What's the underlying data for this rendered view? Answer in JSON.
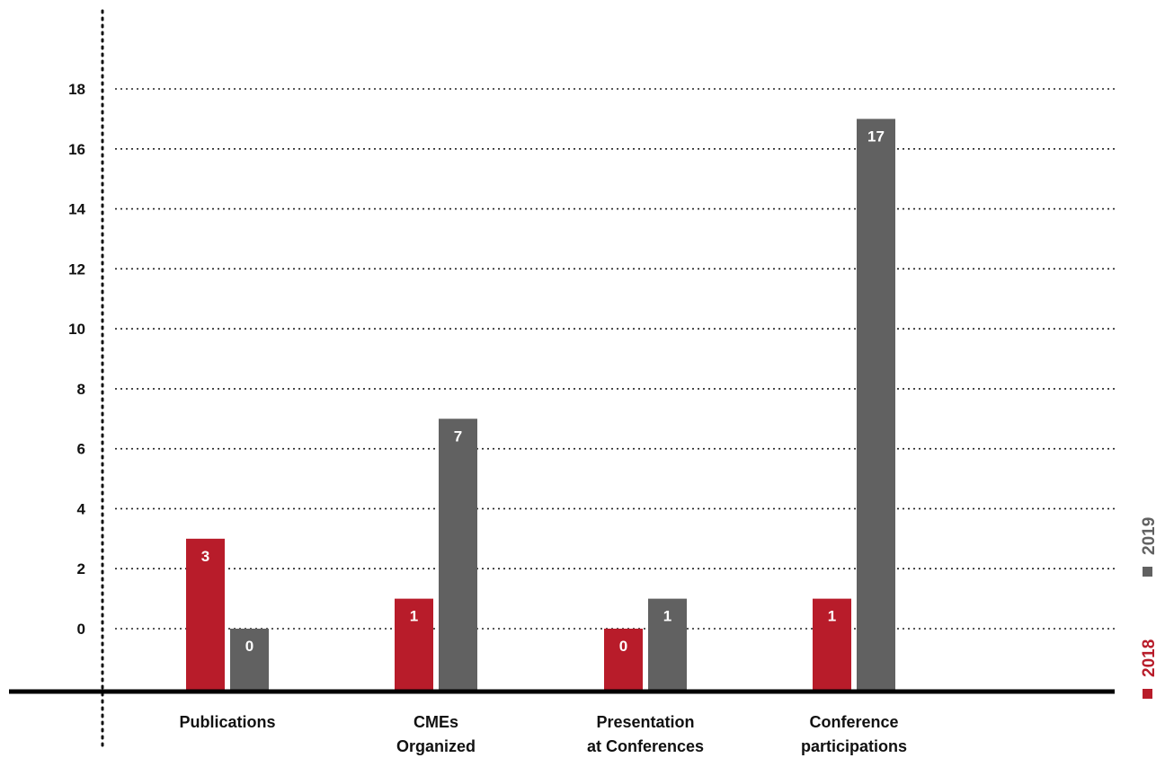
{
  "chart_data": {
    "type": "bar",
    "categories": [
      [
        "Publications"
      ],
      [
        "CMEs",
        "Organized"
      ],
      [
        "Presentation",
        "at Conferences"
      ],
      [
        "Conference",
        "participations"
      ]
    ],
    "series": [
      {
        "name": "2018",
        "color": "#b81c2a",
        "values": [
          3,
          1,
          0,
          1
        ]
      },
      {
        "name": "2019",
        "color": "#616161",
        "values": [
          0,
          7,
          1,
          17
        ]
      }
    ],
    "yticks": [
      0,
      2,
      4,
      6,
      8,
      10,
      12,
      14,
      16,
      18
    ],
    "ylim": [
      0,
      18
    ],
    "grid": true,
    "legend": "right-vertical"
  }
}
